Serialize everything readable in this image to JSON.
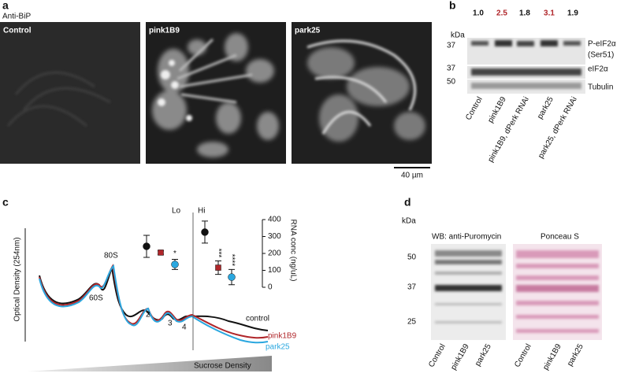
{
  "panel_a": {
    "letter": "a",
    "stain": "Anti-BiP",
    "images": [
      "Control",
      "pink1B9",
      "park25"
    ],
    "scale_bar": "40 µm"
  },
  "panel_b": {
    "letter": "b",
    "ratios": [
      {
        "text": "1.0",
        "color": "#111111"
      },
      {
        "text": "2.5",
        "color": "#b0262a"
      },
      {
        "text": "1.8",
        "color": "#111111"
      },
      {
        "text": "3.1",
        "color": "#b0262a"
      },
      {
        "text": "1.9",
        "color": "#111111"
      }
    ],
    "kda": "kDa",
    "markers": [
      "37",
      "37",
      "50"
    ],
    "bands": [
      "P-eIF2α",
      "(Ser51)",
      "eIF2α",
      "Tubulin"
    ],
    "lanes": [
      "Control",
      "pink1B9",
      "pink1B9, dPerk RNAi",
      "park25",
      "park25, dPerk RNAi"
    ]
  },
  "panel_c": {
    "letter": "c",
    "ylabel": "Optical Density (254nm)",
    "xlabel": "Sucrose Density",
    "peaks": [
      "60S",
      "80S",
      "2",
      "3",
      "4"
    ],
    "fractions": [
      "Lo",
      "Hi"
    ],
    "rna": {
      "ylabel": "RNA conc (ng/uL)",
      "ylim": [
        0,
        400
      ],
      "yticks": [
        0,
        100,
        200,
        300,
        400
      ],
      "series": [
        {
          "name": "control",
          "color": "#111111",
          "values": [
            242,
            326
          ],
          "errors": [
            65,
            65
          ]
        },
        {
          "name": "pink1B9",
          "color": "#b0262a",
          "values": [
            205,
            116
          ],
          "errors": [
            10,
            40
          ]
        },
        {
          "name": "park25",
          "color": "#2aa7df",
          "values": [
            135,
            60
          ],
          "errors": [
            30,
            45
          ]
        }
      ],
      "significance": [
        "*",
        "***",
        "****"
      ]
    }
  },
  "panel_d": {
    "letter": "d",
    "blots": [
      "WB: anti-Puromycin",
      "Ponceau S"
    ],
    "kda": "kDa",
    "markers": [
      "50",
      "37",
      "25"
    ],
    "lanes": [
      "Control",
      "pink1B9",
      "park25"
    ]
  }
}
